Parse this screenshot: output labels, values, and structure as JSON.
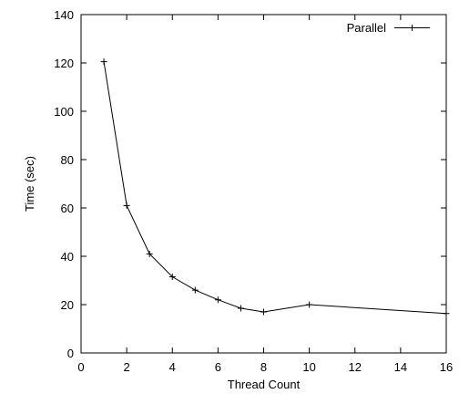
{
  "chart_data": {
    "type": "line",
    "title": "",
    "xlabel": "Thread Count",
    "ylabel": "Time (sec)",
    "xlim": [
      0,
      16
    ],
    "ylim": [
      0,
      140
    ],
    "xticks": [
      0,
      2,
      4,
      6,
      8,
      10,
      12,
      14,
      16
    ],
    "yticks": [
      0,
      20,
      40,
      60,
      80,
      100,
      120,
      140
    ],
    "grid": false,
    "legend_position": "top-right",
    "series": [
      {
        "name": "Parallel",
        "color": "#000000",
        "marker": "plus",
        "x": [
          1,
          2,
          3,
          4,
          5,
          6,
          7,
          8,
          10,
          16
        ],
        "y": [
          120.5,
          61,
          41,
          31.5,
          26,
          22,
          18.5,
          17,
          20,
          16.3
        ]
      }
    ]
  }
}
